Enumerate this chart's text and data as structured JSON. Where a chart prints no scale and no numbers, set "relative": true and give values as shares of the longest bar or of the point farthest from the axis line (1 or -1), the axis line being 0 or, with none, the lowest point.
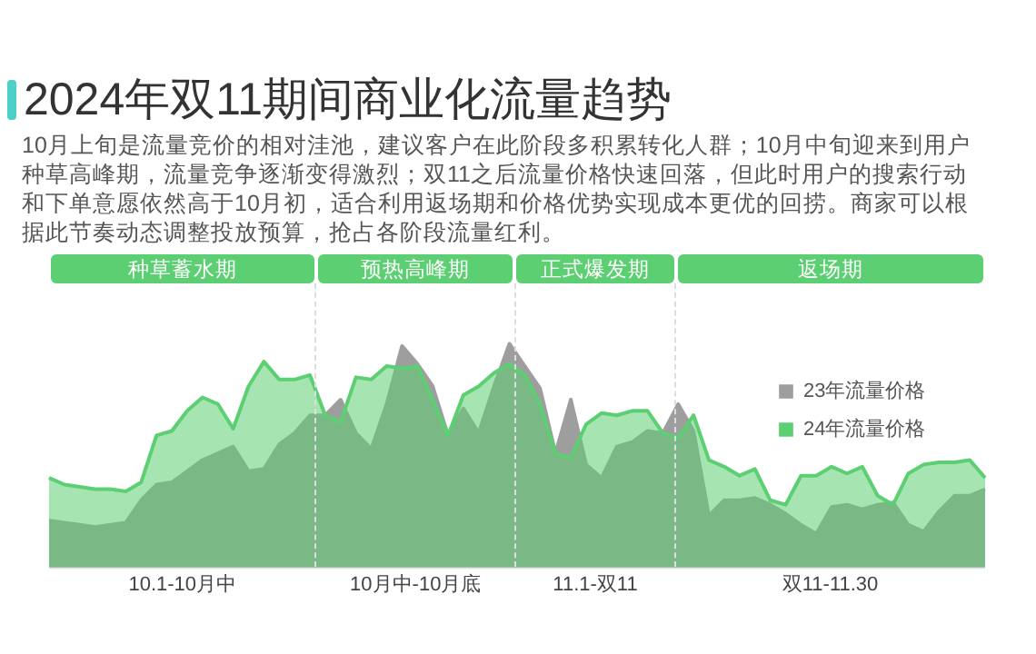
{
  "chart_data": {
    "type": "area",
    "title": "2024年双11期间商业化流量趋势",
    "subtitle": "10月上旬是流量竞价的相对洼池，建议客户在此阶段多积累转化人群；10月中旬迎来到用户种草高峰期，流量竞争逐渐变得激烈；双11之后流量价格快速回落，但此时用户的搜索行动和下单意愿依然高于10月初，适合利用返场期和价格优势实现成本更优的回捞。商家可以根据此节奏动态调整投放预算，抢占各阶段流量红利。",
    "relative": true,
    "categories": [
      null,
      null,
      null,
      null,
      null,
      null,
      null,
      null,
      null,
      null,
      null,
      null,
      null,
      null,
      null,
      null,
      null,
      null,
      null,
      null,
      null,
      null,
      null,
      null,
      null,
      null,
      null,
      null,
      null,
      null,
      null,
      null,
      null,
      null,
      null,
      null,
      null,
      null,
      null,
      null,
      null,
      null,
      null,
      null,
      null,
      null,
      null,
      null,
      null,
      null,
      null,
      null,
      null,
      null,
      null,
      null,
      null,
      null,
      null,
      null,
      null,
      null
    ],
    "series": [
      {
        "name": "23年流量价格",
        "color": "#9e9e9e",
        "values": [
          0.21,
          0.2,
          0.19,
          0.18,
          0.19,
          0.2,
          0.3,
          0.37,
          0.38,
          0.43,
          0.48,
          0.51,
          0.54,
          0.43,
          0.44,
          0.55,
          0.6,
          0.68,
          0.68,
          0.75,
          0.6,
          0.53,
          0.73,
          0.99,
          0.91,
          0.81,
          0.59,
          0.71,
          0.6,
          0.81,
          1,
          0.9,
          0.8,
          0.51,
          0.75,
          0.46,
          0.4,
          0.54,
          0.56,
          0.61,
          0.6,
          0.73,
          0.61,
          0.23,
          0.3,
          0.3,
          0.31,
          0.28,
          0.24,
          0.19,
          0.15,
          0.27,
          0.28,
          0.26,
          0.28,
          0.29,
          0.19,
          0.16,
          0.25,
          0.32,
          0.32,
          0.35
        ]
      },
      {
        "name": "24年流量价格",
        "color": "#5ccf72",
        "values": [
          0.4,
          0.37,
          0.36,
          0.35,
          0.35,
          0.34,
          0.38,
          0.59,
          0.61,
          0.7,
          0.76,
          0.73,
          0.62,
          0.81,
          0.92,
          0.84,
          0.84,
          0.86,
          0.68,
          0.65,
          0.85,
          0.84,
          0.9,
          0.89,
          0.9,
          0.75,
          0.59,
          0.77,
          0.81,
          0.87,
          0.91,
          0.86,
          0.73,
          0.51,
          0.49,
          0.64,
          0.69,
          0.68,
          0.7,
          0.7,
          0.6,
          0.58,
          0.68,
          0.48,
          0.45,
          0.41,
          0.44,
          0.3,
          0.28,
          0.41,
          0.41,
          0.45,
          0.42,
          0.45,
          0.32,
          0.28,
          0.42,
          0.46,
          0.47,
          0.47,
          0.48,
          0.4
        ]
      }
    ],
    "annotations": [
      "种草蓄水期",
      "预热高峰期",
      "正式爆发期",
      "返场期",
      "10.1-10月中",
      "10月中-10月底",
      "11.1-双11",
      "双11-11.30"
    ],
    "legend": "top right"
  }
}
